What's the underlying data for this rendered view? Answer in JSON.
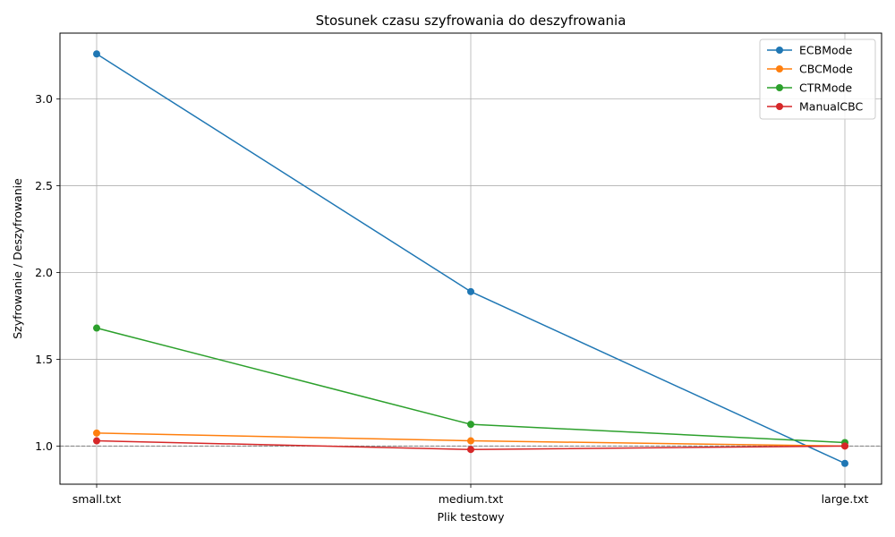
{
  "chart_data": {
    "type": "line",
    "title": "Stosunek czasu szyfrowania do deszyfrowania",
    "xlabel": "Plik testowy",
    "ylabel": "Szyfrowanie / Deszyfrowanie",
    "categories": [
      "small.txt",
      "medium.txt",
      "large.txt"
    ],
    "ylim": [
      0.78,
      3.38
    ],
    "yticks": [
      1.0,
      1.5,
      2.0,
      2.5,
      3.0
    ],
    "ytick_labels": [
      "1.0",
      "1.5",
      "2.0",
      "2.5",
      "3.0"
    ],
    "grid": true,
    "reference_line": {
      "y": 1.0,
      "style": "dashed",
      "color": "#808080"
    },
    "legend": {
      "position": "top-right"
    },
    "series": [
      {
        "name": "ECBMode",
        "color": "#1f77b4",
        "values": [
          3.26,
          1.89,
          0.9
        ]
      },
      {
        "name": "CBCMode",
        "color": "#ff7f0e",
        "values": [
          1.075,
          1.03,
          1.0
        ]
      },
      {
        "name": "CTRMode",
        "color": "#2ca02c",
        "values": [
          1.68,
          1.125,
          1.02
        ]
      },
      {
        "name": "ManualCBC",
        "color": "#d62728",
        "values": [
          1.03,
          0.98,
          1.0
        ]
      }
    ]
  }
}
